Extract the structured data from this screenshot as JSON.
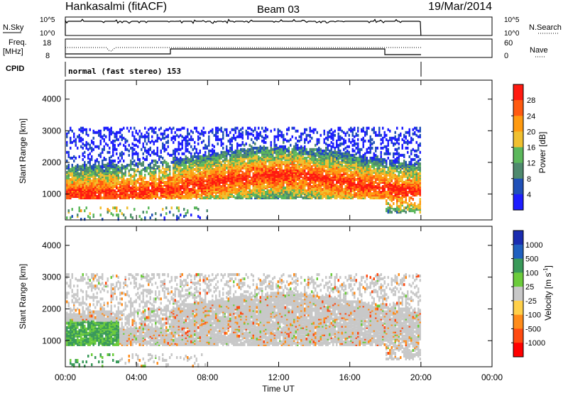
{
  "header": {
    "station": "Hankasalmi (fitACF)",
    "beam": "Beam 03",
    "date": "19/Mar/2014"
  },
  "top_panels": {
    "nsky_label": "N.Sky",
    "nsearch_label": "N.Search",
    "nsky_ticks": [
      "10^5",
      "10^0"
    ],
    "nsearch_ticks": [
      "10^5",
      "10^0"
    ],
    "freq_label_1": "Freq.",
    "freq_label_2": "[MHz]",
    "freq_ticks": [
      "18",
      "8"
    ],
    "nave_label": "Nave",
    "nave_ticks": [
      "60",
      "0"
    ],
    "cpid_label": "CPID",
    "cpid_text": "normal (fast stereo) 153"
  },
  "colors": {
    "power": [
      "#1d1dff",
      "#2050b8",
      "#4f8a6e",
      "#5cb85c",
      "#f0c030",
      "#ff9a10",
      "#ff5a10",
      "#ff1a10"
    ],
    "velocity": [
      "#ff0000",
      "#ff4a10",
      "#ff8c1a",
      "#ffd04a",
      "#c8c8c8",
      "#6ccc3c",
      "#3a9a5a",
      "#2060c0",
      "#1a2cb0"
    ],
    "ground": "#b0b0b0"
  },
  "chart_data": [
    {
      "type": "heatmap",
      "name": "power",
      "ylabel": "Slant Range [km]",
      "yticks": [
        "4000",
        "3000",
        "2000",
        "1000"
      ],
      "ylim": [
        180,
        4600
      ],
      "xticks": [
        "00:00",
        "04:00",
        "08:00",
        "12:00",
        "16:00",
        "20:00",
        "00:00"
      ],
      "xlim_hours": [
        0,
        24
      ],
      "data_end_hour": 20,
      "colorbar_label": "Power [dB]",
      "colorbar_ticks": [
        "28",
        "24",
        "20",
        "16",
        "12",
        "8",
        "4"
      ],
      "colorbar_range": [
        0,
        32
      ]
    },
    {
      "type": "heatmap",
      "name": "velocity",
      "xlabel": "Time UT",
      "ylabel": "Slant Range [km]",
      "yticks": [
        "4000",
        "3000",
        "2000",
        "1000"
      ],
      "ylim": [
        180,
        4600
      ],
      "xticks": [
        "00:00",
        "04:00",
        "08:00",
        "12:00",
        "16:00",
        "20:00",
        "00:00"
      ],
      "xlim_hours": [
        0,
        24
      ],
      "data_end_hour": 20,
      "colorbar_label": "Velocity [m s",
      "colorbar_label_sup": "-1",
      "colorbar_label_end": "]",
      "colorbar_ticks": [
        "1000",
        "500",
        "100",
        "25",
        "-25",
        "-100",
        "-500",
        "-1000"
      ],
      "colorbar_range": [
        -1000,
        1000
      ]
    }
  ]
}
